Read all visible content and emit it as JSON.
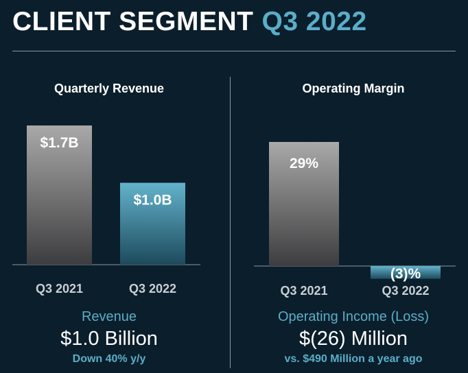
{
  "title": {
    "main": "CLIENT SEGMENT",
    "accent": "Q3 2022"
  },
  "colors": {
    "background": "#0b1e2b",
    "accent": "#5aaec9",
    "gray_top": "#a9a9a9",
    "gray_bottom": "#3d3d3f",
    "teal_top": "#63b3cc",
    "teal_bottom": "#1d4a5c"
  },
  "left_summary": {
    "label": "Revenue",
    "value": "$1.0 Billion",
    "note": "Down 40% y/y"
  },
  "right_summary": {
    "label": "Operating Income (Loss)",
    "value": "$(26) Million",
    "note": "vs. $490 Million a year ago"
  },
  "chart_data": [
    {
      "type": "bar",
      "title": "Quarterly Revenue",
      "categories": [
        "Q3 2021",
        "Q3 2022"
      ],
      "values": [
        1.7,
        1.0
      ],
      "data_labels": [
        "$1.7B",
        "$1.0B"
      ],
      "unit": "B USD",
      "ylim": [
        0,
        1.7
      ],
      "grid": false
    },
    {
      "type": "bar",
      "title": "Operating Margin",
      "categories": [
        "Q3 2021",
        "Q3 2022"
      ],
      "values": [
        29,
        -3
      ],
      "data_labels": [
        "29%",
        "(3)%"
      ],
      "unit": "%",
      "ylim": [
        -3,
        29
      ],
      "grid": false
    }
  ]
}
